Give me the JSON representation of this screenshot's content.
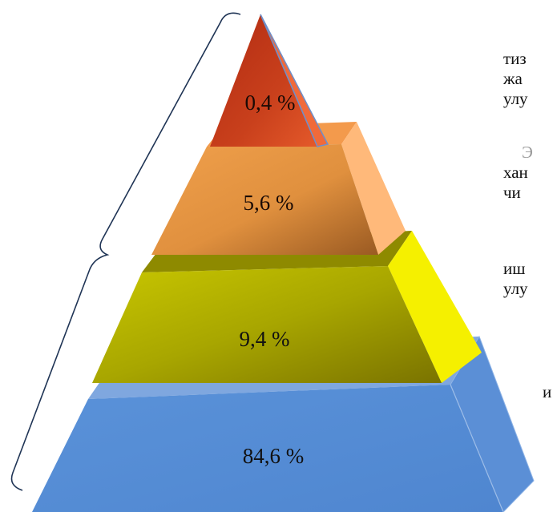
{
  "colors": {
    "tier1_front": "#c43a1c",
    "tier2_front": "#d9863a",
    "tier3_front": "#a9a800",
    "tier4_front": "#4f86d0",
    "bracket": "#1f3455"
  },
  "tiers": [
    {
      "label": "0,4 %",
      "value": 0.4
    },
    {
      "label": "5,6 %",
      "value": 5.6
    },
    {
      "label": "9,4 %",
      "value": 9.4
    },
    {
      "label": "84,6 %",
      "value": 84.6
    }
  ],
  "side_text": {
    "line1": "тиз",
    "line2": "жа",
    "line3": "улу",
    "line4": "Э",
    "line5": "хан",
    "line6": "чи",
    "line7": "иш",
    "line8": "улу",
    "line9": "и"
  }
}
